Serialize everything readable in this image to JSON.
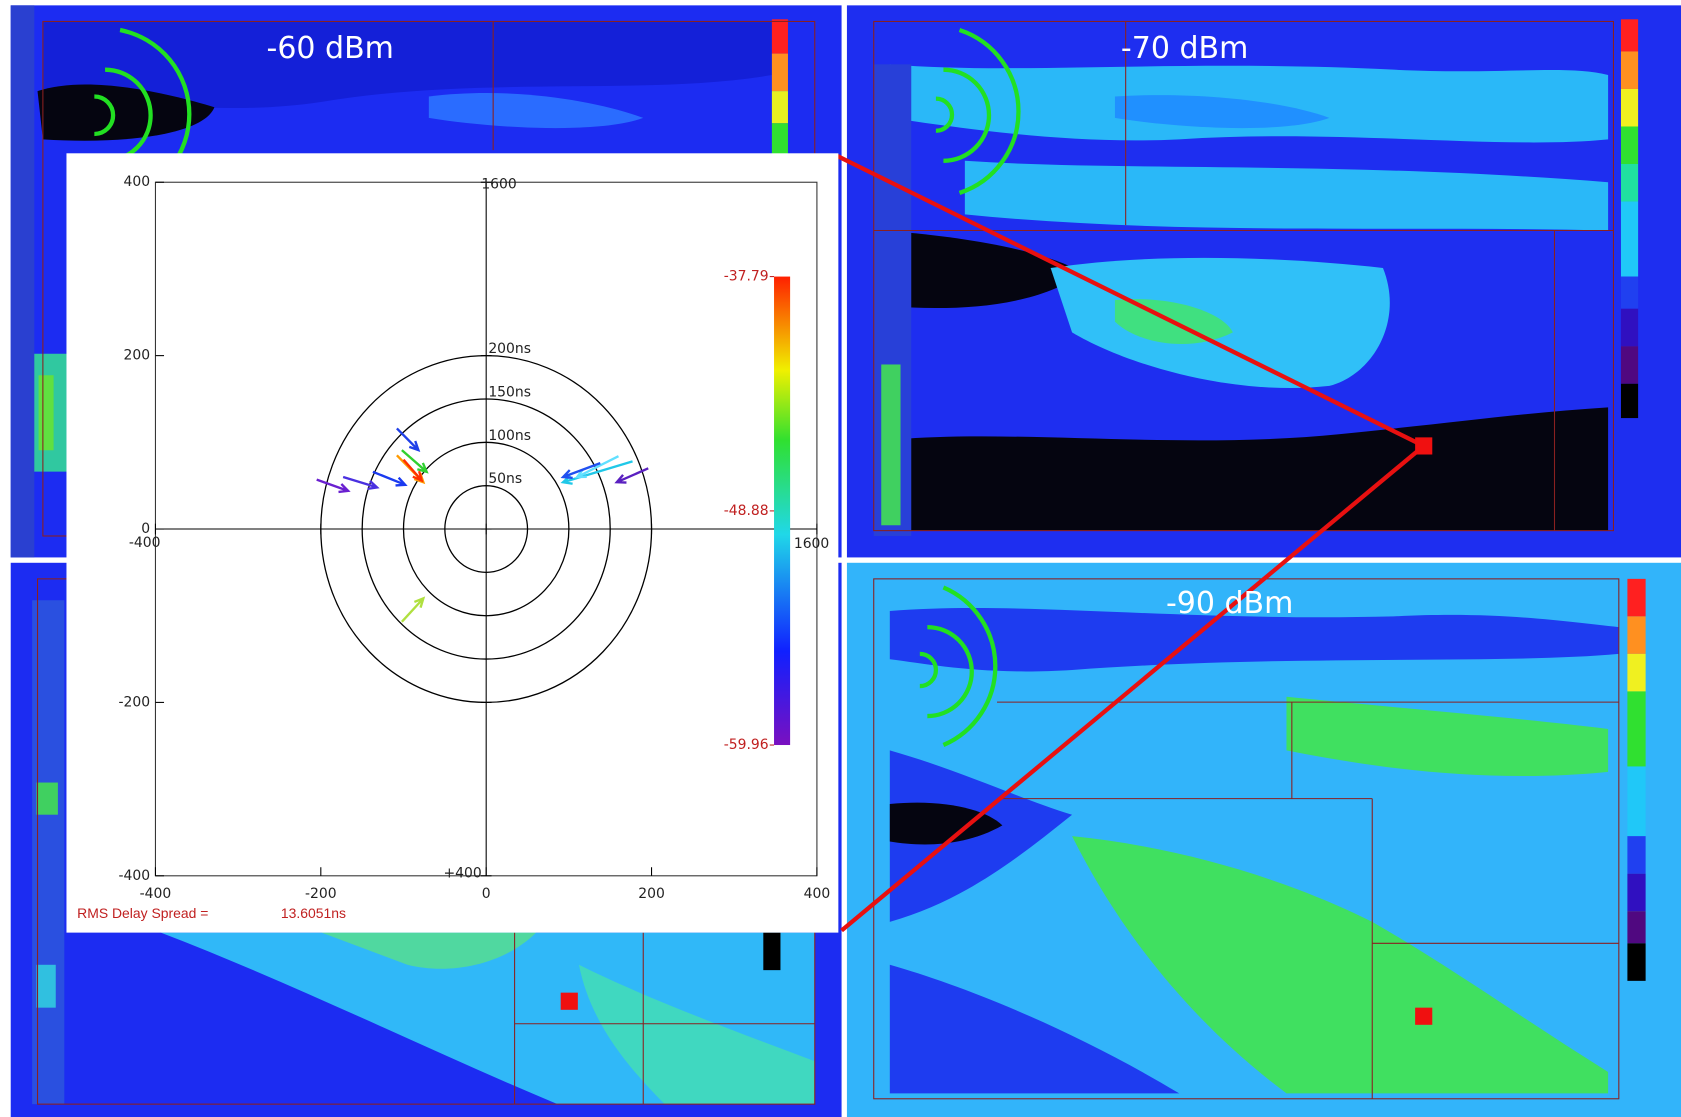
{
  "signal_labels": [
    "-60 dBm",
    "-70 dBm",
    "-90 dBm"
  ],
  "chart_data": {
    "type": "arrows",
    "xlim": [
      -400,
      400
    ],
    "ylim": [
      -400,
      400
    ],
    "xticks": [
      -400,
      -200,
      0,
      200,
      400
    ],
    "yticks": [
      -400,
      -200,
      0,
      200,
      400
    ],
    "annotations": [
      "1600",
      "-400",
      "1600",
      "+400"
    ],
    "rings": [
      {
        "radius": 50,
        "label": "50ns"
      },
      {
        "radius": 100,
        "label": "100ns"
      },
      {
        "radius": 150,
        "label": "150ns"
      },
      {
        "radius": 200,
        "label": "200ns"
      }
    ],
    "arrows": [
      {
        "x": [
          -205,
          -167
        ],
        "y": [
          57,
          44
        ],
        "color": "#6a20d0"
      },
      {
        "x": [
          -173,
          -132
        ],
        "y": [
          60,
          48
        ],
        "color": "#4a30e0"
      },
      {
        "x": [
          -137,
          -98
        ],
        "y": [
          66,
          51
        ],
        "color": "#1a3af0"
      },
      {
        "x": [
          -108,
          -82
        ],
        "y": [
          116,
          91
        ],
        "color": "#2040e8"
      },
      {
        "x": [
          -102,
          -72
        ],
        "y": [
          91,
          66
        ],
        "color": "#30d030"
      },
      {
        "x": [
          -108,
          -76
        ],
        "y": [
          85,
          54
        ],
        "color": "#ff9a00"
      },
      {
        "x": [
          -100,
          -78
        ],
        "y": [
          80,
          56
        ],
        "color": "#ff3000"
      },
      {
        "x": [
          177,
          93
        ],
        "y": [
          78,
          54
        ],
        "color": "#20c8e8"
      },
      {
        "x": [
          160,
          110
        ],
        "y": [
          84,
          60
        ],
        "color": "#60e0ff"
      },
      {
        "x": [
          138,
          93
        ],
        "y": [
          76,
          60
        ],
        "color": "#2050f0"
      },
      {
        "x": [
          196,
          158
        ],
        "y": [
          70,
          54
        ],
        "color": "#5a20c0"
      },
      {
        "x": [
          -102,
          -76
        ],
        "y": [
          -107,
          -80
        ],
        "color": "#b0e040"
      }
    ],
    "colorbar": {
      "lim": [
        -59.96,
        -37.79
      ],
      "ticks": [
        -59.96,
        -48.88,
        -37.79
      ]
    },
    "footer_label": "RMS Delay Spread =",
    "footer_value": "13.6051ns"
  }
}
